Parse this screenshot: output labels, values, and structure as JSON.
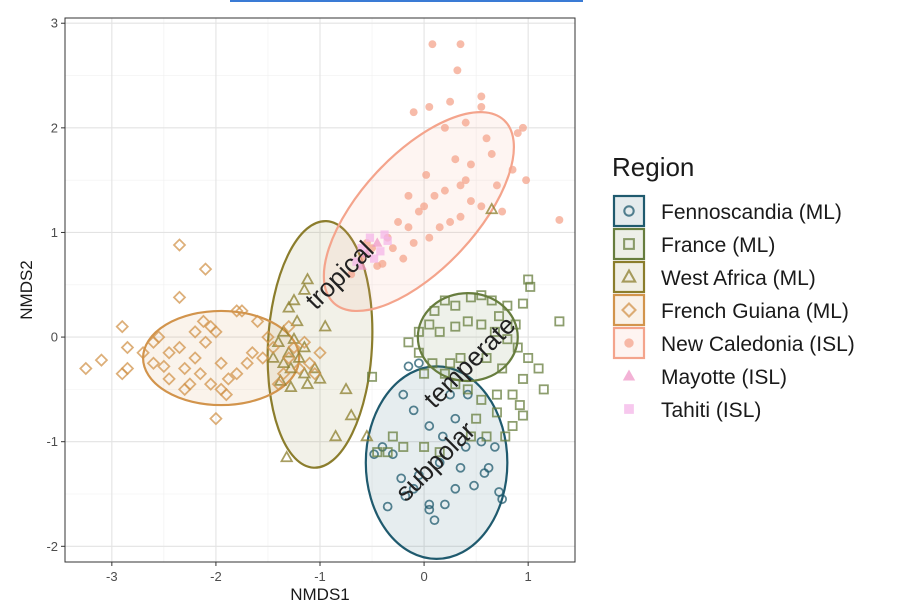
{
  "chart_data": {
    "type": "scatter",
    "xlabel": "NMDS1",
    "ylabel": "NMDS2",
    "xlim": [
      -3.45,
      1.45
    ],
    "ylim": [
      -2.15,
      3.05
    ],
    "xticks": [
      -3,
      -2,
      -1,
      0,
      1
    ],
    "yticks": [
      -2,
      -1,
      0,
      1,
      2,
      3
    ],
    "grid": true,
    "legend_title": "Region",
    "legend_position": "right",
    "series": [
      {
        "name": "Fennoscandia (ML)",
        "marker": "circle",
        "color": "#1f5a6e",
        "ellipse": {
          "cx": 0.12,
          "cy": -1.2,
          "rx": 0.68,
          "ry": 0.92,
          "angle": 0
        },
        "points": [
          [
            -0.15,
            -0.28
          ],
          [
            -0.2,
            -0.55
          ],
          [
            -0.1,
            -0.7
          ],
          [
            0.05,
            -0.85
          ],
          [
            0.18,
            -0.95
          ],
          [
            0.3,
            -0.78
          ],
          [
            0.42,
            -0.55
          ],
          [
            0.4,
            -1.05
          ],
          [
            0.55,
            -1.0
          ],
          [
            0.68,
            -1.05
          ],
          [
            0.35,
            -1.25
          ],
          [
            0.15,
            -1.2
          ],
          [
            -0.05,
            -1.32
          ],
          [
            -0.22,
            -1.35
          ],
          [
            -0.3,
            -1.12
          ],
          [
            -0.4,
            -1.05
          ],
          [
            -0.18,
            -1.52
          ],
          [
            0.05,
            -1.6
          ],
          [
            0.1,
            -1.75
          ],
          [
            0.3,
            -1.45
          ],
          [
            0.48,
            -1.42
          ],
          [
            0.72,
            -1.48
          ],
          [
            0.75,
            -1.55
          ],
          [
            0.2,
            -1.6
          ],
          [
            -0.35,
            -1.62
          ],
          [
            -0.1,
            -1.45
          ],
          [
            0.05,
            -1.65
          ],
          [
            0.58,
            -1.3
          ],
          [
            -0.48,
            -1.12
          ],
          [
            -0.05,
            -0.25
          ],
          [
            0.25,
            -0.55
          ],
          [
            0.62,
            -1.25
          ]
        ]
      },
      {
        "name": "France (ML)",
        "marker": "square",
        "color": "#677d3e",
        "ellipse": {
          "cx": 0.42,
          "cy": 0.0,
          "rx": 0.48,
          "ry": 0.42,
          "angle": 0
        },
        "points": [
          [
            1.0,
            0.55
          ],
          [
            1.02,
            0.48
          ],
          [
            1.3,
            0.15
          ],
          [
            0.95,
            0.32
          ],
          [
            0.8,
            0.3
          ],
          [
            0.88,
            0.12
          ],
          [
            0.72,
            0.2
          ],
          [
            0.65,
            0.35
          ],
          [
            0.55,
            0.4
          ],
          [
            0.45,
            0.38
          ],
          [
            0.3,
            0.3
          ],
          [
            0.2,
            0.35
          ],
          [
            0.1,
            0.25
          ],
          [
            0.05,
            0.12
          ],
          [
            0.15,
            0.05
          ],
          [
            0.3,
            0.1
          ],
          [
            0.42,
            0.15
          ],
          [
            0.55,
            0.12
          ],
          [
            0.68,
            0.05
          ],
          [
            0.8,
            -0.02
          ],
          [
            0.9,
            -0.1
          ],
          [
            1.0,
            -0.2
          ],
          [
            1.1,
            -0.3
          ],
          [
            1.15,
            -0.5
          ],
          [
            0.95,
            -0.4
          ],
          [
            0.85,
            -0.55
          ],
          [
            0.7,
            -0.55
          ],
          [
            0.55,
            -0.6
          ],
          [
            0.42,
            -0.5
          ],
          [
            0.3,
            -0.45
          ],
          [
            0.2,
            -0.35
          ],
          [
            0.08,
            -0.25
          ],
          [
            -0.05,
            -0.15
          ],
          [
            -0.15,
            -0.05
          ],
          [
            -0.05,
            0.05
          ],
          [
            0.0,
            -0.35
          ],
          [
            0.25,
            -0.25
          ],
          [
            0.6,
            -0.2
          ],
          [
            0.95,
            -0.75
          ],
          [
            0.85,
            -0.85
          ],
          [
            0.7,
            -0.72
          ],
          [
            0.5,
            -0.78
          ],
          [
            0.45,
            -0.95
          ],
          [
            0.6,
            -0.95
          ],
          [
            -0.5,
            -0.38
          ],
          [
            -0.3,
            -0.95
          ],
          [
            -0.2,
            -1.05
          ],
          [
            -0.35,
            -1.1
          ],
          [
            -0.45,
            -1.1
          ],
          [
            0.0,
            -1.05
          ],
          [
            0.15,
            -1.1
          ],
          [
            0.78,
            -0.95
          ],
          [
            0.92,
            -0.65
          ],
          [
            0.35,
            -0.2
          ],
          [
            0.75,
            -0.3
          ]
        ]
      },
      {
        "name": "West Africa (ML)",
        "marker": "triangle",
        "color": "#8b7d2c",
        "ellipse": {
          "cx": -1.0,
          "cy": -0.07,
          "rx": 0.5,
          "ry": 1.18,
          "angle": 3
        },
        "points": [
          [
            -1.12,
            0.55
          ],
          [
            -1.15,
            0.45
          ],
          [
            -1.25,
            0.35
          ],
          [
            -1.3,
            0.28
          ],
          [
            -1.22,
            0.15
          ],
          [
            -1.35,
            0.05
          ],
          [
            -1.25,
            -0.02
          ],
          [
            -1.15,
            -0.1
          ],
          [
            -1.3,
            -0.15
          ],
          [
            -1.2,
            -0.2
          ],
          [
            -1.35,
            -0.25
          ],
          [
            -1.45,
            -0.2
          ],
          [
            -1.28,
            -0.3
          ],
          [
            -1.15,
            -0.35
          ],
          [
            -1.05,
            -0.3
          ],
          [
            -1.12,
            -0.45
          ],
          [
            -1.28,
            -0.48
          ],
          [
            -1.38,
            -0.42
          ],
          [
            -0.75,
            -0.5
          ],
          [
            -0.7,
            -0.75
          ],
          [
            -0.85,
            -0.95
          ],
          [
            -1.32,
            -1.15
          ],
          [
            -0.55,
            -0.95
          ],
          [
            0.65,
            1.22
          ],
          [
            -0.95,
            0.1
          ],
          [
            -1.0,
            -0.4
          ],
          [
            -1.4,
            -0.05
          ]
        ]
      },
      {
        "name": "French Guiana (ML)",
        "marker": "diamond",
        "color": "#d2944c",
        "ellipse": {
          "cx": -1.95,
          "cy": -0.2,
          "rx": 0.75,
          "ry": 0.45,
          "angle": 0
        },
        "points": [
          [
            -3.25,
            -0.3
          ],
          [
            -3.1,
            -0.22
          ],
          [
            -2.9,
            -0.35
          ],
          [
            -2.85,
            -0.3
          ],
          [
            -2.9,
            0.1
          ],
          [
            -2.85,
            -0.1
          ],
          [
            -2.6,
            -0.05
          ],
          [
            -2.55,
            0.0
          ],
          [
            -2.45,
            -0.15
          ],
          [
            -2.35,
            -0.1
          ],
          [
            -2.3,
            -0.3
          ],
          [
            -2.2,
            -0.2
          ],
          [
            -2.1,
            -0.05
          ],
          [
            -2.0,
            0.05
          ],
          [
            -1.95,
            -0.25
          ],
          [
            -1.88,
            -0.4
          ],
          [
            -1.95,
            -0.5
          ],
          [
            -2.05,
            -0.45
          ],
          [
            -2.15,
            -0.35
          ],
          [
            -2.25,
            -0.45
          ],
          [
            -2.3,
            -0.5
          ],
          [
            -2.45,
            -0.4
          ],
          [
            -2.12,
            0.15
          ],
          [
            -2.05,
            0.1
          ],
          [
            -1.8,
            0.25
          ],
          [
            -1.75,
            0.25
          ],
          [
            -1.6,
            0.15
          ],
          [
            -1.5,
            0.0
          ],
          [
            -1.45,
            -0.1
          ],
          [
            -1.55,
            -0.2
          ],
          [
            -1.7,
            -0.25
          ],
          [
            -1.8,
            -0.35
          ],
          [
            -2.35,
            0.88
          ],
          [
            -2.1,
            0.65
          ],
          [
            -2.35,
            0.38
          ],
          [
            -2.0,
            -0.78
          ],
          [
            -1.9,
            -0.55
          ],
          [
            -1.3,
            -0.2
          ],
          [
            -1.25,
            -0.1
          ],
          [
            -1.35,
            -0.35
          ],
          [
            -1.2,
            -0.3
          ],
          [
            -1.1,
            -0.25
          ],
          [
            -1.0,
            -0.15
          ],
          [
            -1.05,
            -0.35
          ],
          [
            -1.4,
            -0.45
          ],
          [
            -1.15,
            -0.05
          ],
          [
            -1.3,
            0.1
          ],
          [
            -2.7,
            -0.15
          ],
          [
            -2.6,
            -0.25
          ],
          [
            -2.2,
            0.05
          ],
          [
            -2.5,
            -0.28
          ],
          [
            -1.65,
            -0.15
          ]
        ]
      },
      {
        "name": "New Caledonia (ISL)",
        "marker": "dot",
        "color": "#f4a48c",
        "ellipse": {
          "cx": -0.05,
          "cy": 1.2,
          "rx": 1.2,
          "ry": 0.55,
          "angle": -47
        },
        "points": [
          [
            0.08,
            2.8
          ],
          [
            0.35,
            2.8
          ],
          [
            0.32,
            2.55
          ],
          [
            0.55,
            2.2
          ],
          [
            0.6,
            1.9
          ],
          [
            0.9,
            1.95
          ],
          [
            0.95,
            2.0
          ],
          [
            0.85,
            1.6
          ],
          [
            0.98,
            1.5
          ],
          [
            0.7,
            1.45
          ],
          [
            1.3,
            1.12
          ],
          [
            0.75,
            1.2
          ],
          [
            0.55,
            1.25
          ],
          [
            0.2,
            1.4
          ],
          [
            0.0,
            1.25
          ],
          [
            -0.15,
            1.05
          ],
          [
            -0.35,
            0.95
          ],
          [
            -0.5,
            0.85
          ],
          [
            -0.6,
            0.75
          ],
          [
            -0.7,
            0.6
          ],
          [
            -0.4,
            0.7
          ],
          [
            -0.2,
            0.75
          ],
          [
            -0.1,
            0.9
          ],
          [
            0.05,
            0.95
          ],
          [
            0.25,
            1.1
          ],
          [
            0.35,
            1.15
          ],
          [
            0.45,
            1.3
          ],
          [
            0.15,
            1.05
          ],
          [
            -0.05,
            1.2
          ],
          [
            -0.25,
            1.1
          ],
          [
            0.1,
            1.35
          ],
          [
            0.4,
            1.5
          ],
          [
            0.3,
            1.7
          ],
          [
            0.2,
            2.0
          ],
          [
            0.05,
            2.2
          ],
          [
            0.65,
            1.75
          ],
          [
            0.45,
            1.65
          ],
          [
            0.35,
            1.45
          ],
          [
            0.02,
            1.55
          ],
          [
            -0.15,
            1.35
          ],
          [
            -0.3,
            0.85
          ],
          [
            -0.45,
            0.68
          ],
          [
            -0.55,
            0.9
          ],
          [
            0.55,
            2.3
          ],
          [
            0.4,
            2.05
          ],
          [
            0.25,
            2.25
          ],
          [
            -0.1,
            2.15
          ]
        ]
      },
      {
        "name": "Mayotte (ISL)",
        "marker": "triangle-filled",
        "color": "#ef98c8",
        "points": [
          [
            -0.55,
            0.8
          ],
          [
            -0.45,
            0.9
          ],
          [
            -0.6,
            0.68
          ]
        ]
      },
      {
        "name": "Tahiti (ISL)",
        "marker": "square-filled",
        "color": "#f4b6e8",
        "points": [
          [
            -0.35,
            0.92
          ],
          [
            -0.42,
            0.82
          ],
          [
            -0.48,
            0.75
          ],
          [
            -0.6,
            0.85
          ],
          [
            -0.38,
            0.98
          ],
          [
            -0.52,
            0.95
          ],
          [
            -0.65,
            0.72
          ]
        ]
      }
    ],
    "annotations": [
      {
        "text": "tropical",
        "x": -0.8,
        "y": 0.58,
        "angle": -45
      },
      {
        "text": "temperate",
        "x": 0.45,
        "y": -0.25,
        "angle": -45
      },
      {
        "text": "subpolar",
        "x": 0.12,
        "y": -1.2,
        "angle": -45
      }
    ]
  }
}
